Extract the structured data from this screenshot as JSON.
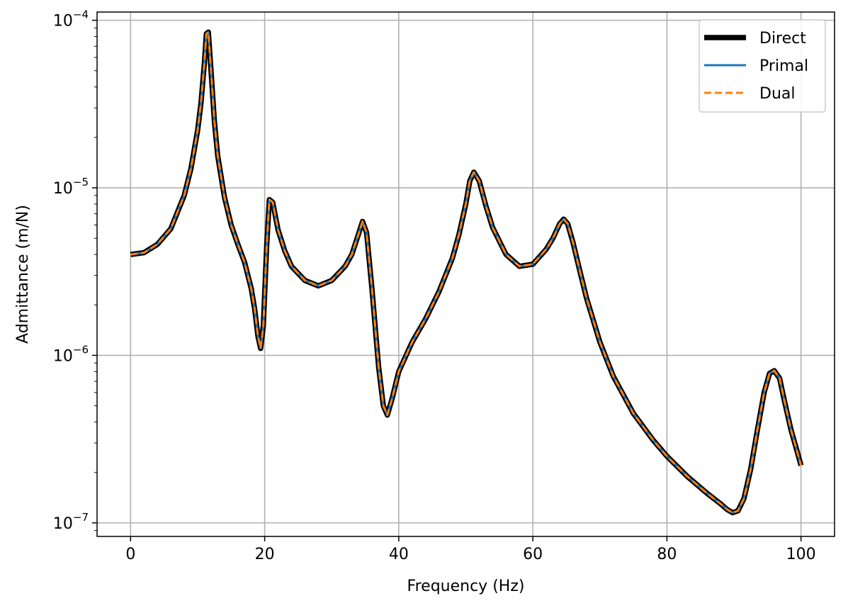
{
  "chart_data": {
    "type": "line",
    "title": "",
    "xlabel": "Frequency (Hz)",
    "ylabel": "Admittance (m/N)",
    "xscale": "linear",
    "yscale": "log",
    "xlim": [
      -5,
      105
    ],
    "ylim": [
      8.3e-08,
      0.000112
    ],
    "xticks": [
      0,
      20,
      40,
      60,
      80,
      100
    ],
    "yticks": [
      {
        "value": 1e-07,
        "base": "10",
        "exp": "−7"
      },
      {
        "value": 1e-06,
        "base": "10",
        "exp": "−6"
      },
      {
        "value": 1e-05,
        "base": "10",
        "exp": "−5"
      },
      {
        "value": 0.0001,
        "base": "10",
        "exp": "−4"
      }
    ],
    "grid": true,
    "legend_position": "top-right",
    "x": [
      0,
      2,
      4,
      6,
      8,
      9,
      10,
      10.5,
      11,
      11.3,
      11.6,
      12,
      12.5,
      13,
      14,
      15,
      16,
      17,
      18,
      18.5,
      19,
      19.4,
      19.8,
      20.3,
      20.7,
      21.2,
      22,
      23,
      24,
      26,
      28,
      30,
      32,
      33,
      34,
      34.6,
      35.2,
      36,
      37,
      37.7,
      38.3,
      39,
      40,
      42,
      44,
      46,
      48,
      49,
      50,
      50.6,
      51.2,
      52,
      53,
      54,
      56,
      58,
      60,
      62,
      63,
      64,
      64.6,
      65.2,
      66,
      67,
      68,
      70,
      72,
      75,
      78,
      80,
      83,
      86,
      88,
      89,
      89.8,
      90.6,
      91.5,
      92.5,
      93.5,
      94.5,
      95.3,
      96,
      96.8,
      97.5,
      98.5,
      99.5,
      100
    ],
    "series": [
      {
        "name": "Direct",
        "color": "#000000",
        "style": "solid-thick",
        "values": [
          4e-06,
          4.1e-06,
          4.6e-06,
          5.7e-06,
          9e-06,
          1.3e-05,
          2.2e-05,
          3.2e-05,
          5.5e-05,
          8.3e-05,
          8.5e-05,
          5e-05,
          2.5e-05,
          1.55e-05,
          8.8e-06,
          6e-06,
          4.6e-06,
          3.6e-06,
          2.5e-06,
          1.9e-06,
          1.3e-06,
          1.1e-06,
          1.5e-06,
          4.5e-06,
          8.5e-06,
          8.2e-06,
          5.6e-06,
          4.2e-06,
          3.4e-06,
          2.8e-06,
          2.6e-06,
          2.8e-06,
          3.4e-06,
          4e-06,
          5.3e-06,
          6.3e-06,
          5.4e-06,
          2.5e-06,
          8.5e-07,
          5e-07,
          4.4e-07,
          5.5e-07,
          8e-07,
          1.2e-06,
          1.65e-06,
          2.4e-06,
          3.8e-06,
          5.3e-06,
          8e-06,
          1.1e-05,
          1.24e-05,
          1.1e-05,
          7.8e-06,
          5.8e-06,
          4e-06,
          3.4e-06,
          3.5e-06,
          4.3e-06,
          5e-06,
          6.1e-06,
          6.5e-06,
          6.1e-06,
          4.7e-06,
          3.2e-06,
          2.2e-06,
          1.2e-06,
          7.5e-07,
          4.5e-07,
          3.1e-07,
          2.5e-07,
          1.9e-07,
          1.5e-07,
          1.3e-07,
          1.2e-07,
          1.15e-07,
          1.18e-07,
          1.4e-07,
          2.1e-07,
          3.6e-07,
          6e-07,
          7.8e-07,
          8.1e-07,
          7.3e-07,
          5.4e-07,
          3.6e-07,
          2.6e-07,
          2.2e-07
        ]
      },
      {
        "name": "Primal",
        "color": "#1f77b4",
        "style": "solid",
        "values": [
          4e-06,
          4.1e-06,
          4.6e-06,
          5.7e-06,
          9e-06,
          1.3e-05,
          2.2e-05,
          3.2e-05,
          5.5e-05,
          8.3e-05,
          8.5e-05,
          5e-05,
          2.5e-05,
          1.55e-05,
          8.8e-06,
          6e-06,
          4.6e-06,
          3.6e-06,
          2.5e-06,
          1.9e-06,
          1.3e-06,
          1.1e-06,
          1.5e-06,
          4.5e-06,
          8.5e-06,
          8.2e-06,
          5.6e-06,
          4.2e-06,
          3.4e-06,
          2.8e-06,
          2.6e-06,
          2.8e-06,
          3.4e-06,
          4e-06,
          5.3e-06,
          6.3e-06,
          5.4e-06,
          2.5e-06,
          8.5e-07,
          5e-07,
          4.4e-07,
          5.5e-07,
          8e-07,
          1.2e-06,
          1.65e-06,
          2.4e-06,
          3.8e-06,
          5.3e-06,
          8e-06,
          1.1e-05,
          1.24e-05,
          1.1e-05,
          7.8e-06,
          5.8e-06,
          4e-06,
          3.4e-06,
          3.5e-06,
          4.3e-06,
          5e-06,
          6.1e-06,
          6.5e-06,
          6.1e-06,
          4.7e-06,
          3.2e-06,
          2.2e-06,
          1.2e-06,
          7.5e-07,
          4.5e-07,
          3.1e-07,
          2.5e-07,
          1.9e-07,
          1.5e-07,
          1.3e-07,
          1.2e-07,
          1.15e-07,
          1.18e-07,
          1.4e-07,
          2.1e-07,
          3.6e-07,
          6e-07,
          7.8e-07,
          8.1e-07,
          7.3e-07,
          5.4e-07,
          3.6e-07,
          2.6e-07,
          2.2e-07
        ]
      },
      {
        "name": "Dual",
        "color": "#ff7f0e",
        "style": "dashed",
        "values": [
          4e-06,
          4.1e-06,
          4.6e-06,
          5.7e-06,
          9e-06,
          1.3e-05,
          2.2e-05,
          3.2e-05,
          5.5e-05,
          8.3e-05,
          8.5e-05,
          5e-05,
          2.5e-05,
          1.55e-05,
          8.8e-06,
          6e-06,
          4.6e-06,
          3.6e-06,
          2.5e-06,
          1.9e-06,
          1.3e-06,
          1.1e-06,
          1.5e-06,
          4.5e-06,
          8.5e-06,
          8.2e-06,
          5.6e-06,
          4.2e-06,
          3.4e-06,
          2.8e-06,
          2.6e-06,
          2.8e-06,
          3.4e-06,
          4e-06,
          5.3e-06,
          6.3e-06,
          5.4e-06,
          2.5e-06,
          8.5e-07,
          5e-07,
          4.4e-07,
          5.5e-07,
          8e-07,
          1.2e-06,
          1.65e-06,
          2.4e-06,
          3.8e-06,
          5.3e-06,
          8e-06,
          1.1e-05,
          1.24e-05,
          1.1e-05,
          7.8e-06,
          5.8e-06,
          4e-06,
          3.4e-06,
          3.5e-06,
          4.3e-06,
          5e-06,
          6.1e-06,
          6.5e-06,
          6.1e-06,
          4.7e-06,
          3.2e-06,
          2.2e-06,
          1.2e-06,
          7.5e-07,
          4.5e-07,
          3.1e-07,
          2.5e-07,
          1.9e-07,
          1.5e-07,
          1.3e-07,
          1.2e-07,
          1.15e-07,
          1.18e-07,
          1.4e-07,
          2.1e-07,
          3.6e-07,
          6e-07,
          7.8e-07,
          8.1e-07,
          7.3e-07,
          5.4e-07,
          3.6e-07,
          2.6e-07,
          2.2e-07
        ]
      }
    ]
  }
}
